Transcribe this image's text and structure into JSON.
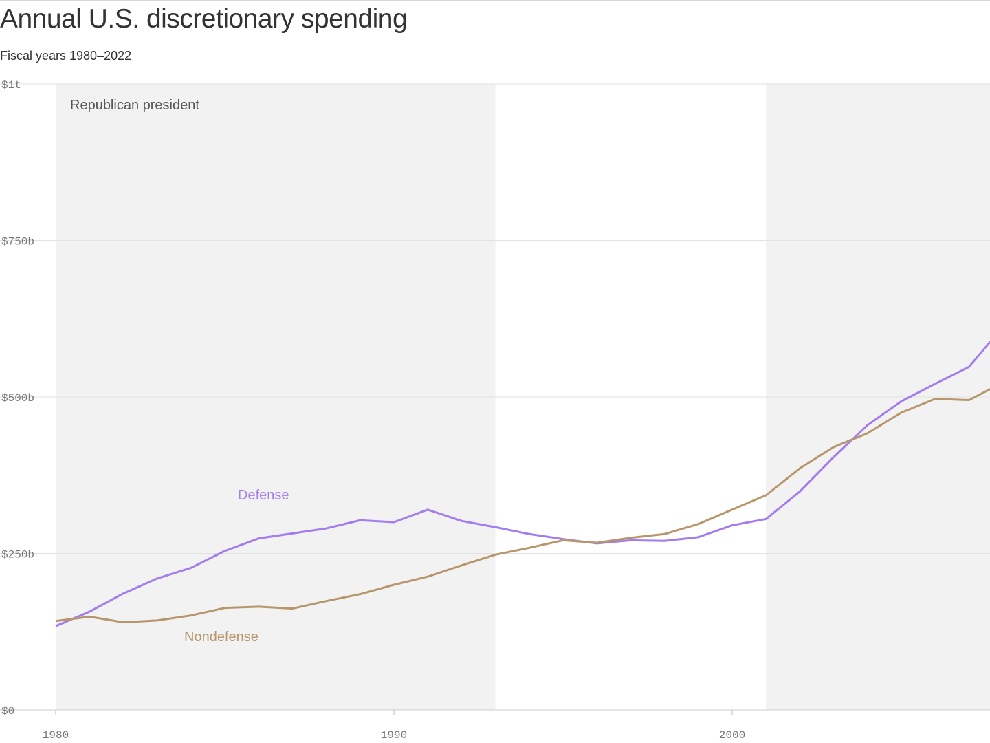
{
  "title": "Annual U.S. discretionary spending",
  "subtitle": "Fiscal years 1980–2022",
  "chart_data": {
    "type": "line",
    "title": "Annual U.S. discretionary spending",
    "subtitle": "Fiscal years 1980–2022",
    "xlabel": "",
    "ylabel": "",
    "xlim": [
      1980,
      2007.6
    ],
    "ylim": [
      0,
      1000
    ],
    "grid": true,
    "y_ticks": [
      {
        "v": 0,
        "label": "$0"
      },
      {
        "v": 250,
        "label": "$250b"
      },
      {
        "v": 500,
        "label": "$500b"
      },
      {
        "v": 750,
        "label": "$750b"
      },
      {
        "v": 1000,
        "label": "$1t"
      }
    ],
    "x_ticks": [
      {
        "v": 1980,
        "label": "1980"
      },
      {
        "v": 1990,
        "label": "1990"
      },
      {
        "v": 2000,
        "label": "2000"
      }
    ],
    "shaded_periods": [
      {
        "from": 1980,
        "to": 1993,
        "label": "Republican president"
      },
      {
        "from": 2001,
        "to": 2009,
        "label": ""
      }
    ],
    "shade_label": "Republican president",
    "x": [
      1980,
      1981,
      1982,
      1983,
      1984,
      1985,
      1986,
      1987,
      1988,
      1989,
      1990,
      1991,
      1992,
      1993,
      1994,
      1995,
      1996,
      1997,
      1998,
      1999,
      2000,
      2001,
      2002,
      2003,
      2004,
      2005,
      2006,
      2007,
      2008
    ],
    "series": [
      {
        "name": "Defense",
        "color": "#a37cf0",
        "values": [
          134,
          157,
          186,
          210,
          227,
          254,
          274,
          282,
          290,
          303,
          300,
          320,
          302,
          292,
          281,
          273,
          266,
          271,
          270,
          276,
          295,
          305,
          349,
          404,
          455,
          493,
          521,
          548,
          612
        ]
      },
      {
        "name": "Nondefense",
        "color": "#b8966b",
        "values": [
          142,
          149,
          140,
          143,
          151,
          163,
          165,
          162,
          174,
          185,
          200,
          213,
          231,
          248,
          259,
          271,
          267,
          275,
          281,
          297,
          320,
          343,
          386,
          420,
          442,
          475,
          497,
          495,
          523
        ]
      }
    ],
    "labels": [
      {
        "series": "Defense",
        "text": "Defense"
      },
      {
        "series": "Nondefense",
        "text": "Nondefense"
      }
    ]
  }
}
